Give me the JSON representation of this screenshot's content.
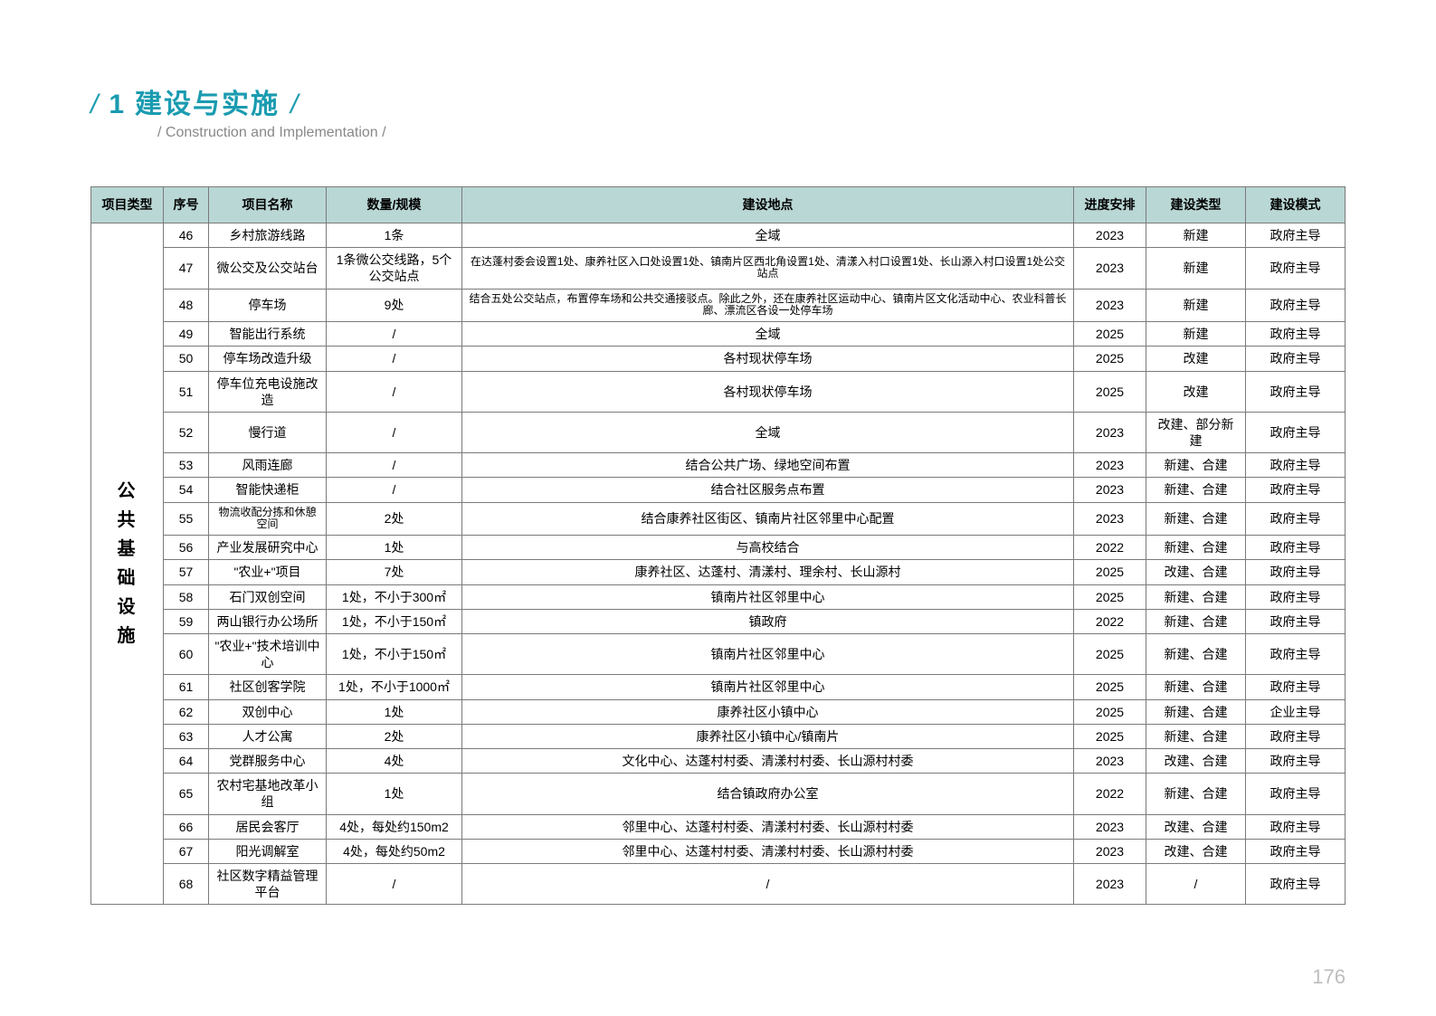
{
  "header": {
    "slash": "/",
    "number": "1",
    "title_cn": "建设与实施",
    "slash2": "/",
    "subtitle_slash1": "/",
    "subtitle_en": "Construction and Implementation",
    "subtitle_slash2": "/"
  },
  "page_number": "176",
  "table": {
    "category": "公共基础设施",
    "headers": {
      "type": "项目类型",
      "seq": "序号",
      "name": "项目名称",
      "scale": "数量/规模",
      "location": "建设地点",
      "schedule": "进度安排",
      "build_type": "建设类型",
      "mode": "建设模式"
    },
    "rows": [
      {
        "seq": "46",
        "name": "乡村旅游线路",
        "scale": "1条",
        "location": "全域",
        "schedule": "2023",
        "btype": "新建",
        "mode": "政府主导"
      },
      {
        "seq": "47",
        "name": "微公交及公交站台",
        "scale": "1条微公交线路，5个公交站点",
        "location": "在达蓬村委会设置1处、康养社区入口处设置1处、镇南片区西北角设置1处、清漾入村口设置1处、长山源入村口设置1处公交站点",
        "schedule": "2023",
        "btype": "新建",
        "mode": "政府主导",
        "small": true
      },
      {
        "seq": "48",
        "name": "停车场",
        "scale": "9处",
        "location": "结合五处公交站点，布置停车场和公共交通接驳点。除此之外，还在康养社区运动中心、镇南片区文化活动中心、农业科普长廊、漂流区各设一处停车场",
        "schedule": "2023",
        "btype": "新建",
        "mode": "政府主导",
        "small": true
      },
      {
        "seq": "49",
        "name": "智能出行系统",
        "scale": "/",
        "location": "全域",
        "schedule": "2025",
        "btype": "新建",
        "mode": "政府主导"
      },
      {
        "seq": "50",
        "name": "停车场改造升级",
        "scale": "/",
        "location": "各村现状停车场",
        "schedule": "2025",
        "btype": "改建",
        "mode": "政府主导"
      },
      {
        "seq": "51",
        "name": "停车位充电设施改造",
        "scale": "/",
        "location": "各村现状停车场",
        "schedule": "2025",
        "btype": "改建",
        "mode": "政府主导"
      },
      {
        "seq": "52",
        "name": "慢行道",
        "scale": "/",
        "location": "全域",
        "schedule": "2023",
        "btype": "改建、部分新建",
        "mode": "政府主导"
      },
      {
        "seq": "53",
        "name": "风雨连廊",
        "scale": "/",
        "location": "结合公共广场、绿地空间布置",
        "schedule": "2023",
        "btype": "新建、合建",
        "mode": "政府主导"
      },
      {
        "seq": "54",
        "name": "智能快递柜",
        "scale": "/",
        "location": "结合社区服务点布置",
        "schedule": "2023",
        "btype": "新建、合建",
        "mode": "政府主导"
      },
      {
        "seq": "55",
        "name": "物流收配分拣和休憩空间",
        "scale": "2处",
        "location": "结合康养社区街区、镇南片社区邻里中心配置",
        "schedule": "2023",
        "btype": "新建、合建",
        "mode": "政府主导",
        "nsmall": true
      },
      {
        "seq": "56",
        "name": "产业发展研究中心",
        "scale": "1处",
        "location": "与高校结合",
        "schedule": "2022",
        "btype": "新建、合建",
        "mode": "政府主导"
      },
      {
        "seq": "57",
        "name": "\"农业+\"项目",
        "scale": "7处",
        "location": "康养社区、达蓬村、清漾村、理余村、长山源村",
        "schedule": "2025",
        "btype": "改建、合建",
        "mode": "政府主导"
      },
      {
        "seq": "58",
        "name": "石门双创空间",
        "scale": "1处，不小于300㎡",
        "location": "镇南片社区邻里中心",
        "schedule": "2025",
        "btype": "新建、合建",
        "mode": "政府主导"
      },
      {
        "seq": "59",
        "name": "两山银行办公场所",
        "scale": "1处，不小于150㎡",
        "location": "镇政府",
        "schedule": "2022",
        "btype": "新建、合建",
        "mode": "政府主导"
      },
      {
        "seq": "60",
        "name": "\"农业+\"技术培训中心",
        "scale": "1处，不小于150㎡",
        "location": "镇南片社区邻里中心",
        "schedule": "2025",
        "btype": "新建、合建",
        "mode": "政府主导"
      },
      {
        "seq": "61",
        "name": "社区创客学院",
        "scale": "1处，不小于1000㎡",
        "location": "镇南片社区邻里中心",
        "schedule": "2025",
        "btype": "新建、合建",
        "mode": "政府主导"
      },
      {
        "seq": "62",
        "name": "双创中心",
        "scale": "1处",
        "location": "康养社区小镇中心",
        "schedule": "2025",
        "btype": "新建、合建",
        "mode": "企业主导"
      },
      {
        "seq": "63",
        "name": "人才公寓",
        "scale": "2处",
        "location": "康养社区小镇中心/镇南片",
        "schedule": "2025",
        "btype": "新建、合建",
        "mode": "政府主导"
      },
      {
        "seq": "64",
        "name": "党群服务中心",
        "scale": "4处",
        "location": "文化中心、达蓬村村委、清漾村村委、长山源村村委",
        "schedule": "2023",
        "btype": "改建、合建",
        "mode": "政府主导"
      },
      {
        "seq": "65",
        "name": "农村宅基地改革小组",
        "scale": "1处",
        "location": "结合镇政府办公室",
        "schedule": "2022",
        "btype": "新建、合建",
        "mode": "政府主导"
      },
      {
        "seq": "66",
        "name": "居民会客厅",
        "scale": "4处，每处约150m2",
        "location": "邻里中心、达蓬村村委、清漾村村委、长山源村村委",
        "schedule": "2023",
        "btype": "改建、合建",
        "mode": "政府主导"
      },
      {
        "seq": "67",
        "name": "阳光调解室",
        "scale": "4处，每处约50m2",
        "location": "邻里中心、达蓬村村委、清漾村村委、长山源村村委",
        "schedule": "2023",
        "btype": "改建、合建",
        "mode": "政府主导"
      },
      {
        "seq": "68",
        "name": "社区数字精益管理平台",
        "scale": "/",
        "location": "/",
        "schedule": "2023",
        "btype": "/",
        "mode": "政府主导"
      }
    ]
  },
  "colors": {
    "accent": "#1a9bb0",
    "header_bg": "#b9d7d5",
    "border": "#7a7a7a",
    "page_num": "#bdbdbd",
    "subtitle": "#888888"
  }
}
